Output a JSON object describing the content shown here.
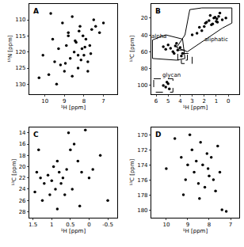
{
  "chart_data": [
    {
      "type": "scatter",
      "title": "A",
      "x_label": "¹H [ppm]",
      "y_label": "¹⁵N [ppm]",
      "color": "#000000",
      "marker": "circle",
      "x": [
        10.3,
        10.1,
        9.8,
        9.6,
        9.5,
        9.3,
        9.2,
        9.1,
        9.0,
        8.9,
        8.8,
        8.7,
        8.6,
        8.5,
        8.4,
        8.3,
        8.2,
        8.1,
        8.0,
        7.9,
        7.8,
        7.7,
        7.6,
        7.5,
        7.4,
        7.2,
        9.4,
        8.95,
        8.45,
        8.15,
        7.95,
        7.65,
        8.6,
        8.25,
        9.7,
        8.8,
        8.3,
        7.8,
        8.05,
        7.0
      ],
      "y": [
        128,
        121,
        127,
        116,
        123,
        119,
        124,
        111,
        126,
        118,
        114,
        122,
        109,
        120,
        117,
        125,
        112,
        119,
        121,
        116,
        123,
        118,
        113,
        110,
        112,
        114,
        130,
        123.5,
        116.5,
        122.5,
        118.5,
        120.5,
        127.5,
        113.5,
        108,
        115,
        121,
        126,
        115,
        111
      ],
      "xlim": [
        10.8,
        6.3
      ],
      "ylim": [
        133,
        105
      ],
      "xticks": [
        10,
        9,
        8,
        7
      ],
      "yticks": [
        110,
        115,
        120,
        125,
        130
      ]
    },
    {
      "type": "scatter",
      "title": "B",
      "x_label": "¹H [ppm]",
      "y_label": "¹³C [ppm]",
      "color": "#000000",
      "marker": "circle",
      "x": [
        0.2,
        0.5,
        0.8,
        0.9,
        1.0,
        1.2,
        1.3,
        1.5,
        1.6,
        1.8,
        2.0,
        2.2,
        2.4,
        2.6,
        3.0,
        0.7,
        1.1,
        1.4,
        1.9,
        0.95,
        4.0,
        4.2,
        4.4,
        4.6,
        4.8,
        5.0,
        5.2,
        5.4,
        3.8,
        4.3,
        4.5,
        3.9,
        5.0,
        5.2,
        5.4,
        4.9,
        5.1
      ],
      "y": [
        20,
        22,
        18,
        25,
        24,
        20,
        27,
        17,
        23,
        25,
        30,
        35,
        31,
        38,
        40,
        14,
        19,
        28,
        26,
        21,
        55,
        58,
        53,
        60,
        56,
        52,
        57,
        54,
        62,
        50,
        62,
        65,
        98,
        102,
        100,
        104,
        96
      ],
      "xlim": [
        6.4,
        -0.9
      ],
      "ylim": [
        110,
        3
      ],
      "xticks": [
        6,
        5,
        4,
        3,
        2,
        1,
        0
      ],
      "yticks": [
        20,
        40,
        60,
        80,
        100
      ],
      "annotations": [
        {
          "text": "alpha",
          "x": 5.8,
          "y": 42
        },
        {
          "text": "aliphatic",
          "x": 1.0,
          "y": 46
        },
        {
          "text": "glycan",
          "x": 4.7,
          "y": 88
        }
      ],
      "regions": [
        {
          "x": [
            6.3,
            5.2,
            3.8,
            3.6,
            4.3,
            6.3,
            6.3
          ],
          "y": [
            46,
            40,
            45,
            68,
            70,
            68,
            46
          ],
          "line_style": "solid"
        },
        {
          "x": [
            4.3,
            3.6,
            3.2,
            2.2,
            -0.3,
            -0.3,
            0.5,
            3.4,
            4.3
          ],
          "y": [
            55,
            40,
            10,
            8,
            8,
            26,
            32,
            60,
            55
          ],
          "line_style": "solid"
        },
        {
          "x": [
            4.2,
            3.4,
            3.4,
            4.2,
            4.2
          ],
          "y": [
            58,
            58,
            70,
            70,
            58
          ],
          "line_style": "dash"
        },
        {
          "x": [
            3.9,
            3.0,
            3.0,
            3.9,
            3.9
          ],
          "y": [
            62,
            62,
            74,
            74,
            62
          ],
          "line_style": "dash"
        },
        {
          "x": [
            6.2,
            4.6,
            4.6,
            6.2,
            6.2
          ],
          "y": [
            92,
            92,
            108,
            108,
            92
          ],
          "line_style": "dash"
        }
      ]
    },
    {
      "type": "scatter",
      "title": "C",
      "x_label": "¹H [ppm]",
      "y_label": "¹³C [ppm]",
      "color": "#000000",
      "marker": "circle",
      "x": [
        1.45,
        1.4,
        1.3,
        1.2,
        1.1,
        1.0,
        0.95,
        0.9,
        0.85,
        0.8,
        0.75,
        0.7,
        0.65,
        0.6,
        0.5,
        0.4,
        0.3,
        0.2,
        0.1,
        -0.1,
        -0.3,
        -0.5,
        1.25,
        1.05,
        0.55,
        0.45,
        0.25,
        1.35,
        0.85,
        0.0
      ],
      "y": [
        24.5,
        21,
        22,
        23,
        21.5,
        22.5,
        20,
        24,
        19,
        21,
        23,
        22,
        25,
        20.5,
        17,
        16,
        19,
        21,
        13.5,
        20.5,
        18,
        26,
        26,
        25,
        14,
        24,
        27,
        17,
        27.5,
        22
      ],
      "xlim": [
        1.6,
        -0.75
      ],
      "ylim": [
        29,
        13
      ],
      "xticks": [
        1.5,
        1,
        0.5,
        0,
        -0.5
      ],
      "yticks": [
        14,
        16,
        18,
        20,
        22,
        24,
        26,
        28
      ]
    },
    {
      "type": "scatter",
      "title": "D",
      "x_label": "¹H [ppm]",
      "y_label": "¹³C [ppm]",
      "color": "#000000",
      "marker": "circle",
      "x": [
        10.0,
        9.6,
        9.3,
        9.1,
        9.0,
        8.8,
        8.7,
        8.6,
        8.5,
        8.4,
        8.3,
        8.2,
        8.1,
        8.0,
        7.9,
        7.8,
        7.6,
        7.4,
        7.2,
        9.2,
        8.9,
        8.45,
        8.05,
        7.7,
        7.5
      ],
      "y": [
        174.5,
        170.5,
        173,
        176,
        174,
        172,
        175,
        173.5,
        176.5,
        171,
        174,
        177,
        172.5,
        175.5,
        173,
        176,
        171.5,
        180,
        180.2,
        178,
        170,
        178.5,
        174.5,
        177.5,
        175
      ],
      "xlim": [
        10.7,
        6.6
      ],
      "ylim": [
        181,
        169
      ],
      "xticks": [
        10,
        9,
        8,
        7
      ],
      "yticks": [
        170,
        172,
        174,
        176,
        178,
        180
      ]
    }
  ]
}
